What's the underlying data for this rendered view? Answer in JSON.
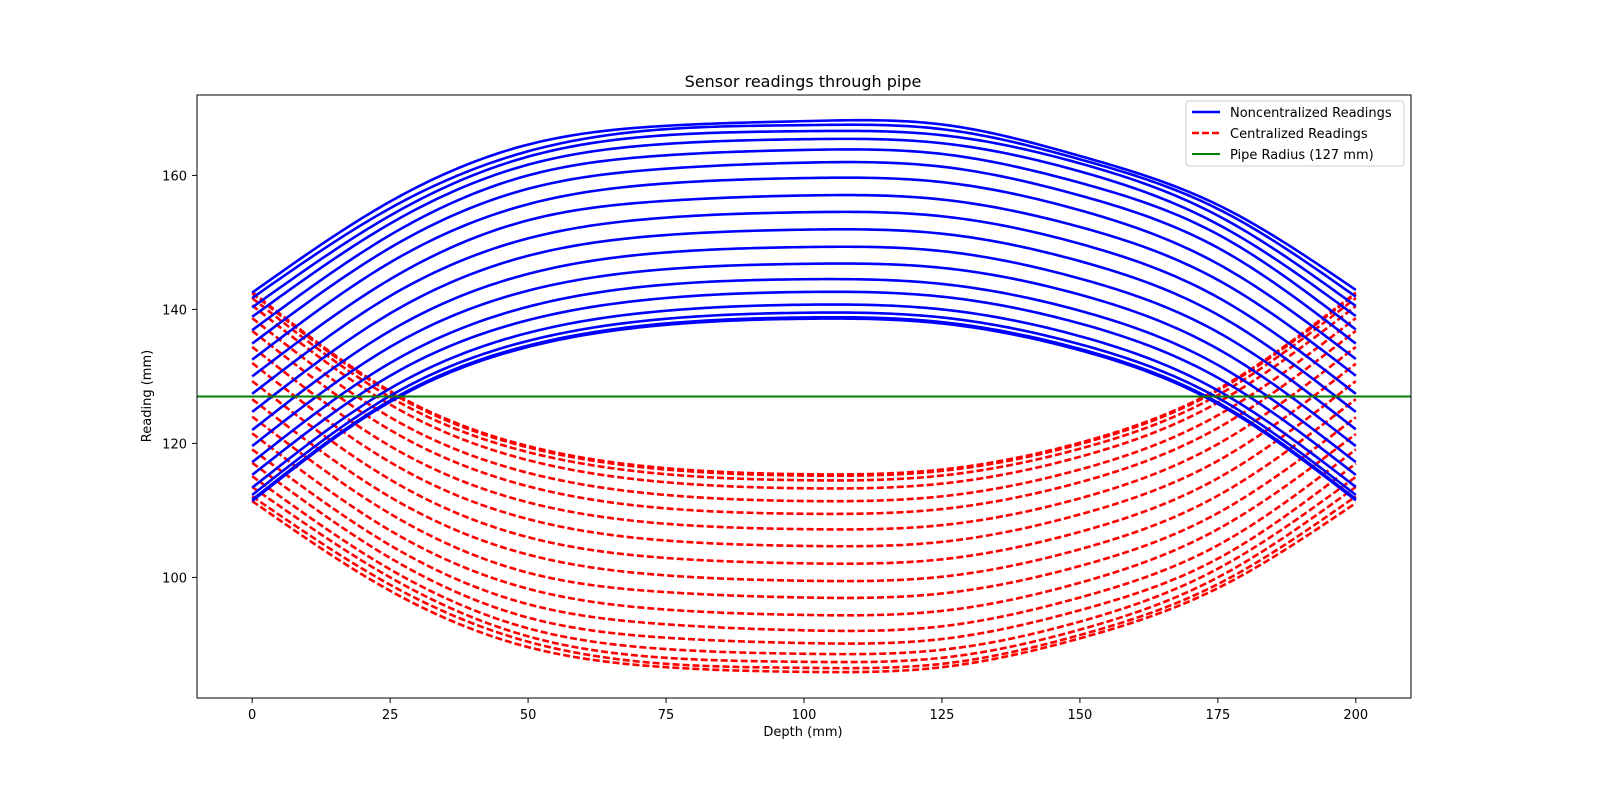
{
  "chart_data": {
    "type": "line",
    "title": "Sensor readings through pipe",
    "xlabel": "Depth (mm)",
    "ylabel": "Reading (mm)",
    "xlim": [
      -10,
      210
    ],
    "ylim": [
      82,
      172
    ],
    "xticks": [
      0,
      25,
      50,
      75,
      100,
      125,
      150,
      175,
      200
    ],
    "yticks": [
      100,
      120,
      140,
      160
    ],
    "grid": false,
    "legend_position": "top-right",
    "depth_samples": [
      0,
      25,
      50,
      75,
      100,
      125,
      150,
      175,
      200
    ],
    "reference_line": {
      "name": "Pipe Radius (127 mm)",
      "y": 127,
      "color": "#008000",
      "style": "solid"
    },
    "series_groups": [
      {
        "name": "Noncentralized Readings",
        "color": "#0000ff",
        "style": "solid",
        "members": [
          {
            "values": [
              142.5,
              156.1,
              164.6,
              167.4,
              168.1,
              167.6,
              162.9,
              155.6,
              142.9
            ]
          },
          {
            "values": [
              141.7,
              155.1,
              163.6,
              166.9,
              167.5,
              166.9,
              162.4,
              155.0,
              141.9
            ]
          },
          {
            "values": [
              140.3,
              154.0,
              162.8,
              166.0,
              166.6,
              166.0,
              161.8,
              154.0,
              140.5
            ]
          },
          {
            "values": [
              138.9,
              152.8,
              161.6,
              164.7,
              165.4,
              164.8,
              160.6,
              152.7,
              139.0
            ]
          },
          {
            "values": [
              136.9,
              151.1,
              160.0,
              163.0,
              163.8,
              163.2,
              158.9,
              151.2,
              137.0
            ]
          },
          {
            "values": [
              134.9,
              149.2,
              158.0,
              161.0,
              161.9,
              161.3,
              157.0,
              149.2,
              134.9
            ]
          },
          {
            "values": [
              132.5,
              147.0,
              155.7,
              158.8,
              159.6,
              159.0,
              154.8,
              146.8,
              132.6
            ]
          },
          {
            "values": [
              130.0,
              144.5,
              153.3,
              156.2,
              157.0,
              156.4,
              152.3,
              144.4,
              130.1
            ]
          },
          {
            "values": [
              127.4,
              142.0,
              150.6,
              153.7,
              154.5,
              153.9,
              149.8,
              141.8,
              127.4
            ]
          },
          {
            "values": [
              124.7,
              139.4,
              148.0,
              151.1,
              151.9,
              151.3,
              147.2,
              139.2,
              124.7
            ]
          },
          {
            "values": [
              122.0,
              136.8,
              145.3,
              148.5,
              149.3,
              148.7,
              144.6,
              136.6,
              122.1
            ]
          },
          {
            "values": [
              119.6,
              134.4,
              142.8,
              146.0,
              146.8,
              146.2,
              142.2,
              134.1,
              119.6
            ]
          },
          {
            "values": [
              117.2,
              132.0,
              140.4,
              143.7,
              144.5,
              143.8,
              139.8,
              131.7,
              117.2
            ]
          },
          {
            "values": [
              115.3,
              130.1,
              138.4,
              141.7,
              142.6,
              141.9,
              137.9,
              129.8,
              115.3
            ]
          },
          {
            "values": [
              113.4,
              128.2,
              136.5,
              139.8,
              140.7,
              140.0,
              136.0,
              127.9,
              113.5
            ]
          },
          {
            "values": [
              112.3,
              127.1,
              135.3,
              138.6,
              139.5,
              138.8,
              134.8,
              126.8,
              112.3
            ]
          },
          {
            "values": [
              111.6,
              126.4,
              134.6,
              137.9,
              138.8,
              138.1,
              134.1,
              126.1,
              111.7
            ]
          },
          {
            "values": [
              111.4,
              126.2,
              134.4,
              137.7,
              138.6,
              137.9,
              133.9,
              125.9,
              111.5
            ]
          }
        ]
      },
      {
        "name": "Centralized Readings",
        "color": "#ff0000",
        "style": "dashed",
        "members": [
          {
            "values": [
              111.4,
              98.0,
              89.6,
              86.6,
              85.9,
              86.6,
              90.9,
              98.4,
              111.1
            ]
          },
          {
            "values": [
              112.1,
              98.9,
              90.4,
              87.1,
              86.5,
              87.1,
              91.4,
              99.0,
              112.1
            ]
          },
          {
            "values": [
              113.5,
              100.0,
              91.2,
              88.0,
              87.4,
              88.0,
              92.2,
              100.0,
              113.5
            ]
          },
          {
            "values": [
              115.1,
              101.2,
              92.4,
              89.3,
              88.6,
              89.2,
              93.4,
              101.3,
              115.0
            ]
          },
          {
            "values": [
              117.1,
              102.9,
              94.0,
              91.0,
              90.2,
              90.8,
              95.1,
              102.8,
              117.0
            ]
          },
          {
            "values": [
              119.1,
              104.8,
              96.0,
              93.0,
              92.1,
              92.7,
              97.0,
              104.8,
              119.1
            ]
          },
          {
            "values": [
              121.5,
              107.0,
              98.3,
              95.2,
              94.4,
              95.0,
              99.2,
              107.2,
              121.4
            ]
          },
          {
            "values": [
              124.0,
              109.5,
              100.7,
              97.8,
              97.0,
              97.6,
              101.7,
              109.6,
              123.9
            ]
          },
          {
            "values": [
              126.6,
              112.0,
              103.4,
              100.3,
              99.5,
              100.1,
              104.2,
              112.2,
              126.6
            ]
          },
          {
            "values": [
              129.3,
              114.6,
              106.0,
              102.9,
              102.1,
              102.7,
              106.8,
              114.8,
              129.3
            ]
          },
          {
            "values": [
              132.0,
              117.2,
              108.7,
              105.5,
              104.7,
              105.3,
              109.4,
              117.4,
              131.9
            ]
          },
          {
            "values": [
              134.4,
              119.6,
              111.2,
              108.0,
              107.2,
              107.8,
              111.8,
              119.9,
              134.4
            ]
          },
          {
            "values": [
              136.8,
              122.0,
              113.6,
              110.3,
              109.5,
              110.2,
              114.2,
              122.3,
              136.8
            ]
          },
          {
            "values": [
              138.7,
              123.9,
              115.6,
              112.3,
              111.4,
              112.1,
              116.1,
              124.2,
              138.7
            ]
          },
          {
            "values": [
              140.6,
              125.8,
              117.5,
              114.2,
              113.3,
              114.0,
              118.0,
              126.1,
              140.5
            ]
          },
          {
            "values": [
              141.7,
              126.9,
              118.7,
              115.4,
              114.5,
              115.2,
              119.2,
              127.2,
              141.7
            ]
          },
          {
            "values": [
              142.4,
              127.6,
              119.4,
              116.1,
              115.2,
              115.9,
              119.9,
              127.9,
              142.3
            ]
          },
          {
            "values": [
              142.6,
              127.8,
              119.6,
              116.3,
              115.4,
              116.1,
              120.1,
              128.1,
              142.5
            ]
          }
        ]
      }
    ]
  }
}
